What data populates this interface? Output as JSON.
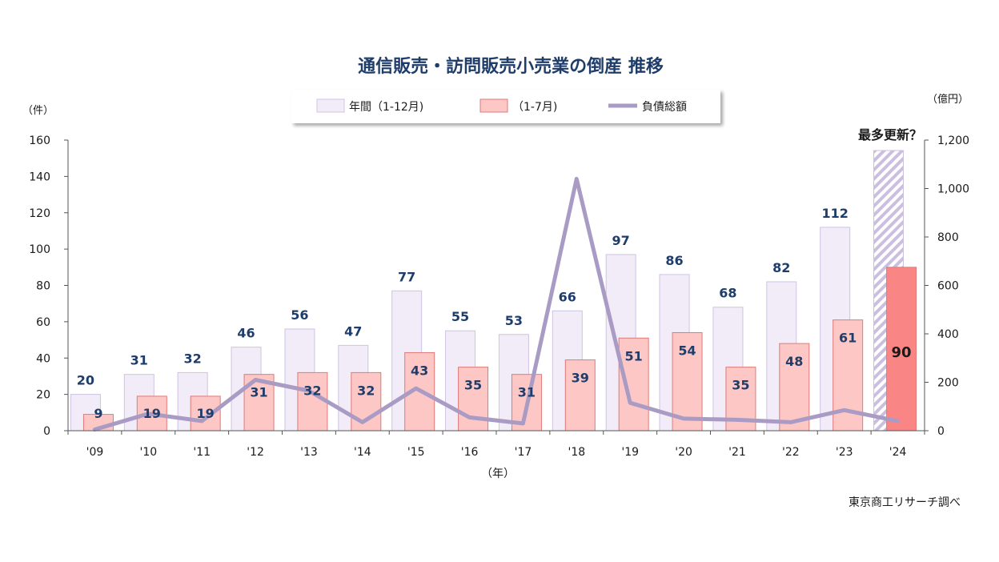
{
  "chart_data": {
    "type": "bar",
    "title": "通信販売・訪問販売小売業の倒産 推移",
    "categories": [
      "'09",
      "'10",
      "'11",
      "'12",
      "'13",
      "'14",
      "'15",
      "'16",
      "'17",
      "'18",
      "'19",
      "'20",
      "'21",
      "'22",
      "'23",
      "'24"
    ],
    "series": [
      {
        "name": "年間（1-12月)",
        "type": "bar",
        "axis": "left",
        "values": [
          20,
          31,
          32,
          46,
          56,
          47,
          77,
          55,
          53,
          66,
          97,
          86,
          68,
          82,
          112,
          null
        ],
        "color": "#f1ecf8",
        "stroke": "#cfc3e3"
      },
      {
        "name": "（1-7月)",
        "type": "bar",
        "axis": "left",
        "values": [
          9,
          19,
          19,
          31,
          32,
          32,
          43,
          35,
          31,
          39,
          51,
          54,
          35,
          48,
          61,
          90
        ],
        "color": "#fcc7c4",
        "stroke": "#e07a78",
        "highlight_color": "#f98684"
      },
      {
        "name": "負債総額",
        "type": "line",
        "axis": "right",
        "values": [
          5,
          70,
          40,
          210,
          165,
          35,
          175,
          55,
          30,
          1040,
          115,
          50,
          45,
          35,
          85,
          40
        ],
        "color": "#a99bc4"
      }
    ],
    "left_axis": {
      "unit": "（件）",
      "ylim": [
        0,
        160
      ],
      "ticks": [
        "0",
        "20",
        "40",
        "60",
        "80",
        "100",
        "120",
        "140",
        "160"
      ]
    },
    "right_axis": {
      "unit": "（億円）",
      "ylim": [
        0,
        1200
      ],
      "ticks": [
        "0",
        "200",
        "400",
        "600",
        "800",
        "1,000",
        "1,200"
      ]
    },
    "xlabel": "（年）",
    "annotation": "最多更新？",
    "source": "東京商工リサーチ調べ",
    "legend_position": "top-center",
    "grid": false
  }
}
